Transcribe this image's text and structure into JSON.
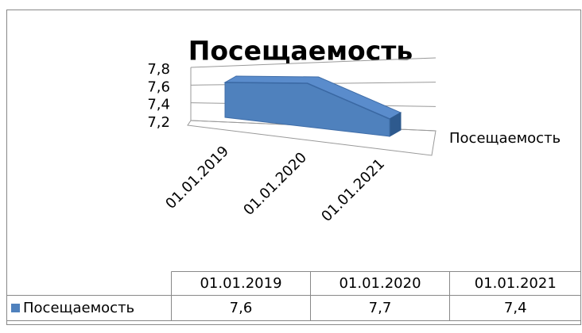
{
  "chart_data": {
    "type": "area3d",
    "title": "Посещаемость",
    "categories": [
      "01.01.2019",
      "01.01.2020",
      "01.01.2021"
    ],
    "series": [
      {
        "name": "Посещаемость",
        "color": "#4f81bd",
        "values": [
          7.6,
          7.7,
          7.4
        ],
        "value_labels": [
          "7,6",
          "7,7",
          "7,4"
        ]
      }
    ],
    "ylim": [
      7.2,
      7.8
    ],
    "yticks": [
      {
        "value": 7.2,
        "label": "7,2"
      },
      {
        "value": 7.4,
        "label": "7,4"
      },
      {
        "value": 7.6,
        "label": "7,6"
      },
      {
        "value": 7.8,
        "label": "7,8"
      }
    ],
    "grid": true,
    "legend": "right",
    "data_table": true
  }
}
